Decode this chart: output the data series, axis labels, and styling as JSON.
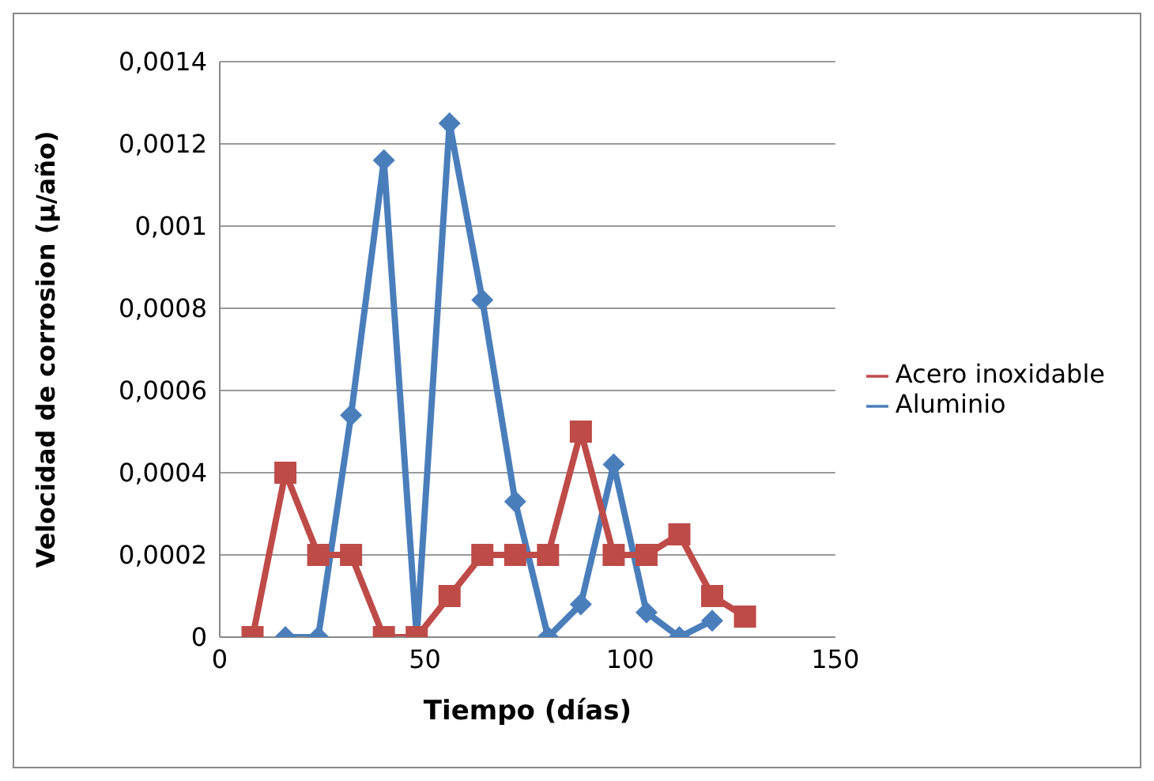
{
  "chart_data": {
    "type": "line",
    "xlabel": "Tiempo (días)",
    "ylabel": "Velocidad de corrosion (μ/año)",
    "xlim": [
      0,
      150
    ],
    "xticks": [
      0,
      50,
      100,
      150
    ],
    "ylim": [
      0,
      0.0014
    ],
    "yticks": [
      {
        "value": 0,
        "label": "0"
      },
      {
        "value": 0.0002,
        "label": "0,0002"
      },
      {
        "value": 0.0004,
        "label": "0,0004"
      },
      {
        "value": 0.0006,
        "label": "0,0006"
      },
      {
        "value": 0.0008,
        "label": "0,0008"
      },
      {
        "value": 0.001,
        "label": "0,001"
      },
      {
        "value": 0.0012,
        "label": "0,0012"
      },
      {
        "value": 0.0014,
        "label": "0,0014"
      }
    ],
    "grid": "y",
    "legend": "right",
    "series": [
      {
        "name": "Aluminio",
        "color": "#4a7ebb",
        "marker": "diamond",
        "x": [
          16,
          24,
          32,
          40,
          48,
          56,
          64,
          72,
          80,
          88,
          96,
          104,
          112,
          120
        ],
        "values": [
          0,
          0,
          0.00054,
          0.00116,
          0,
          0.00125,
          0.00082,
          0.00033,
          0,
          8e-05,
          0.00042,
          6e-05,
          0,
          4e-05
        ]
      },
      {
        "name": "Acero inoxidable",
        "color": "#be4b48",
        "marker": "square",
        "x": [
          8,
          16,
          24,
          32,
          40,
          48,
          56,
          64,
          72,
          80,
          88,
          96,
          104,
          112,
          120,
          128
        ],
        "values": [
          0,
          0.0004,
          0.0002,
          0.0002,
          0,
          0,
          0.0001,
          0.0002,
          0.0002,
          0.0002,
          0.0005,
          0.0002,
          0.0002,
          0.00025,
          0.0001,
          5e-05
        ]
      }
    ]
  }
}
